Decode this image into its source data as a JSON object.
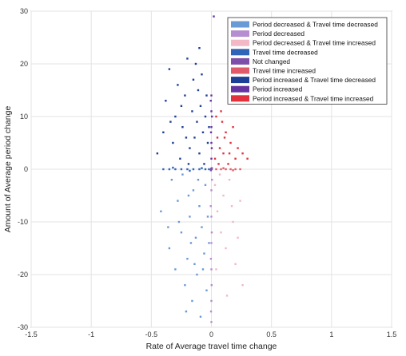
{
  "chart_data": {
    "type": "scatter",
    "title": "",
    "xlabel": "Rate of Average travel time change",
    "ylabel": "Amount of Average period change",
    "xlim": [
      -1.5,
      1.5
    ],
    "ylim": [
      -30,
      30
    ],
    "xticks": [
      -1.5,
      -1,
      -0.5,
      0,
      0.5,
      1,
      1.5
    ],
    "yticks": [
      -30,
      -20,
      -10,
      0,
      10,
      20,
      30
    ],
    "xtick_labels": [
      "-1.5",
      "-1",
      "-0.5",
      "0",
      "0.5",
      "1",
      "1.5"
    ],
    "ytick_labels": [
      "-30",
      "-20",
      "-10",
      "0",
      "10",
      "20",
      "30"
    ],
    "grid": true,
    "legend_position": "top-right",
    "series": [
      {
        "name": "Period decreased & Travel time decreased",
        "color": "#6a9ad6",
        "points": [
          [
            -0.42,
            -8
          ],
          [
            -0.35,
            -15
          ],
          [
            -0.3,
            -19
          ],
          [
            -0.28,
            -6
          ],
          [
            -0.25,
            -12
          ],
          [
            -0.22,
            -22
          ],
          [
            -0.2,
            -17
          ],
          [
            -0.18,
            -9
          ],
          [
            -0.16,
            -25
          ],
          [
            -0.15,
            -4
          ],
          [
            -0.13,
            -13
          ],
          [
            -0.12,
            -20
          ],
          [
            -0.1,
            -7
          ],
          [
            -0.09,
            -28
          ],
          [
            -0.08,
            -11
          ],
          [
            -0.06,
            -16
          ],
          [
            -0.05,
            -3
          ],
          [
            -0.04,
            -23
          ],
          [
            -0.03,
            -9
          ],
          [
            -0.02,
            -14
          ],
          [
            -0.33,
            -2
          ],
          [
            -0.27,
            -10
          ],
          [
            -0.24,
            -1
          ],
          [
            -0.19,
            -5
          ],
          [
            -0.14,
            -18
          ],
          [
            -0.11,
            -2
          ],
          [
            -0.07,
            -19
          ],
          [
            -0.36,
            -11
          ],
          [
            -0.21,
            -27
          ],
          [
            -0.17,
            -14
          ]
        ]
      },
      {
        "name": "Period decreased",
        "color": "#b48ed0",
        "points": [
          [
            0,
            -4
          ],
          [
            0,
            -9
          ],
          [
            0,
            -14
          ],
          [
            0,
            -19
          ],
          [
            0,
            -25
          ],
          [
            0,
            -29
          ],
          [
            0.005,
            -2
          ],
          [
            -0.005,
            -7
          ],
          [
            0.003,
            -12
          ],
          [
            -0.004,
            -17
          ],
          [
            0.002,
            -22
          ],
          [
            -0.003,
            -27
          ]
        ]
      },
      {
        "name": "Period decreased & Travel time increased",
        "color": "#f2b8c6",
        "points": [
          [
            0.03,
            -3
          ],
          [
            0.05,
            -8
          ],
          [
            0.08,
            -12
          ],
          [
            0.1,
            -5
          ],
          [
            0.12,
            -15
          ],
          [
            0.15,
            -2
          ],
          [
            0.18,
            -10
          ],
          [
            0.2,
            -18
          ],
          [
            0.24,
            -6
          ],
          [
            0.26,
            -22
          ],
          [
            0.04,
            -19
          ],
          [
            0.07,
            -1
          ],
          [
            0.13,
            -24
          ],
          [
            0.17,
            -7
          ],
          [
            0.22,
            -13
          ]
        ]
      },
      {
        "name": "Travel time decreased",
        "color": "#2f64b8",
        "points": [
          [
            -0.4,
            0
          ],
          [
            -0.35,
            0
          ],
          [
            -0.3,
            0
          ],
          [
            -0.25,
            0
          ],
          [
            -0.2,
            0
          ],
          [
            -0.15,
            0
          ],
          [
            -0.1,
            0
          ],
          [
            -0.05,
            0
          ],
          [
            -0.02,
            0
          ],
          [
            -0.32,
            0.3
          ],
          [
            -0.18,
            -0.3
          ],
          [
            -0.08,
            0.2
          ]
        ]
      },
      {
        "name": "Not changed",
        "color": "#7e4fa8",
        "points": [
          [
            0,
            0
          ],
          [
            0.004,
            0.2
          ],
          [
            -0.004,
            -0.2
          ],
          [
            0.002,
            0
          ],
          [
            -0.002,
            0.1
          ]
        ]
      },
      {
        "name": "Travel time increased",
        "color": "#e05a6a",
        "points": [
          [
            0.04,
            0
          ],
          [
            0.08,
            0
          ],
          [
            0.12,
            0
          ],
          [
            0.16,
            0
          ],
          [
            0.2,
            0
          ],
          [
            0.24,
            0
          ],
          [
            0.1,
            0.2
          ],
          [
            0.18,
            -0.2
          ]
        ]
      },
      {
        "name": "Period increased & Travel time decreased",
        "color": "#1e3f96",
        "points": [
          [
            -0.45,
            3
          ],
          [
            -0.4,
            7
          ],
          [
            -0.38,
            13
          ],
          [
            -0.35,
            19
          ],
          [
            -0.32,
            5
          ],
          [
            -0.3,
            10
          ],
          [
            -0.28,
            16
          ],
          [
            -0.26,
            2
          ],
          [
            -0.24,
            8
          ],
          [
            -0.22,
            14
          ],
          [
            -0.2,
            21
          ],
          [
            -0.18,
            4
          ],
          [
            -0.16,
            11
          ],
          [
            -0.15,
            17
          ],
          [
            -0.14,
            6
          ],
          [
            -0.12,
            9
          ],
          [
            -0.11,
            15
          ],
          [
            -0.1,
            3
          ],
          [
            -0.09,
            12
          ],
          [
            -0.08,
            18
          ],
          [
            -0.07,
            7
          ],
          [
            -0.06,
            1
          ],
          [
            -0.05,
            10
          ],
          [
            -0.04,
            14
          ],
          [
            -0.03,
            5
          ],
          [
            -0.02,
            8
          ],
          [
            -0.13,
            20
          ],
          [
            -0.25,
            12
          ],
          [
            -0.19,
            1
          ],
          [
            -0.1,
            23
          ],
          [
            -0.34,
            9
          ],
          [
            -0.21,
            6
          ]
        ]
      },
      {
        "name": "Period increased",
        "color": "#6634a0",
        "points": [
          [
            0,
            2
          ],
          [
            0,
            5
          ],
          [
            0,
            8
          ],
          [
            0,
            11
          ],
          [
            0,
            14
          ],
          [
            0.003,
            4
          ],
          [
            -0.003,
            7
          ],
          [
            0.005,
            10
          ],
          [
            -0.005,
            13
          ],
          [
            0.02,
            29
          ]
        ]
      },
      {
        "name": "Period increased & Travel time increased",
        "color": "#e2313c",
        "points": [
          [
            0.03,
            2
          ],
          [
            0.05,
            6
          ],
          [
            0.07,
            4
          ],
          [
            0.09,
            9
          ],
          [
            0.1,
            3
          ],
          [
            0.12,
            7
          ],
          [
            0.14,
            1
          ],
          [
            0.16,
            5
          ],
          [
            0.18,
            8
          ],
          [
            0.2,
            2
          ],
          [
            0.22,
            4
          ],
          [
            0.26,
            3
          ],
          [
            0.3,
            2
          ],
          [
            0.08,
            11
          ],
          [
            0.11,
            6
          ],
          [
            0.15,
            3
          ],
          [
            0.04,
            10
          ],
          [
            0.06,
            1
          ]
        ]
      }
    ]
  }
}
